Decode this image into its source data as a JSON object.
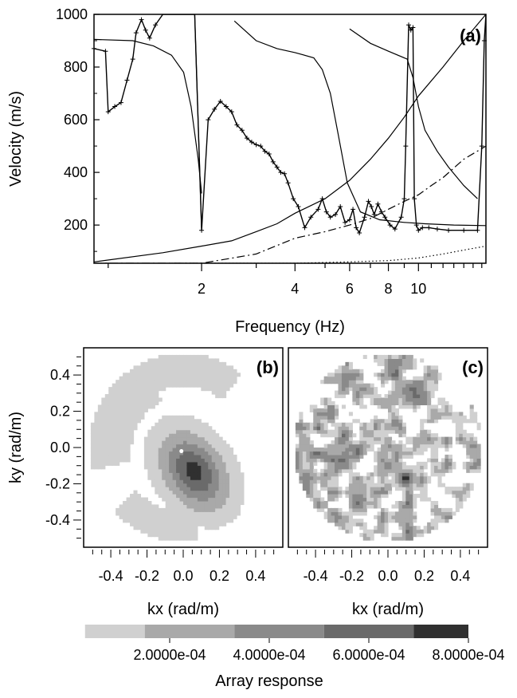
{
  "chart_data": [
    {
      "id": "a",
      "type": "line",
      "panel_label": "(a)",
      "xlabel": "Frequency (Hz)",
      "ylabel": "Velocity (m/s)",
      "xscale": "log",
      "xlim": [
        0.9,
        16.5
      ],
      "ylim": [
        55,
        1000
      ],
      "xticks": [
        2,
        4,
        6,
        8,
        10
      ],
      "yticks": [
        200,
        400,
        600,
        800,
        1000
      ],
      "grid": false,
      "series": [
        {
          "style": "solid",
          "points": [
            [
              0.9,
              905
            ],
            [
              1.2,
              900
            ],
            [
              1.4,
              880
            ],
            [
              1.6,
              845
            ],
            [
              1.75,
              780
            ],
            [
              1.85,
              650
            ],
            [
              1.95,
              450
            ],
            [
              2.0,
              320
            ]
          ]
        },
        {
          "style": "solid",
          "points": [
            [
              1.9,
              1000
            ],
            [
              2.0,
              180
            ]
          ]
        },
        {
          "style": "solid",
          "points": [
            [
              2.55,
              975
            ],
            [
              3.0,
              900
            ],
            [
              3.5,
              870
            ],
            [
              4.0,
              855
            ],
            [
              4.6,
              835
            ],
            [
              4.9,
              790
            ],
            [
              5.2,
              700
            ],
            [
              5.5,
              550
            ],
            [
              5.9,
              360
            ],
            [
              6.5,
              250
            ],
            [
              7.5,
              220
            ],
            [
              9.0,
              210
            ],
            [
              10.5,
              205
            ],
            [
              13,
              200
            ],
            [
              16.5,
              198
            ]
          ]
        },
        {
          "style": "solid",
          "points": [
            [
              6.0,
              945
            ],
            [
              7.0,
              890
            ],
            [
              8.0,
              860
            ],
            [
              9.2,
              830
            ],
            [
              9.6,
              760
            ],
            [
              10.0,
              650
            ],
            [
              10.5,
              560
            ],
            [
              11.5,
              480
            ],
            [
              12.5,
              420
            ],
            [
              14,
              350
            ],
            [
              15.5,
              300
            ]
          ]
        },
        {
          "style": "solid",
          "points": [
            [
              0.9,
              60
            ],
            [
              1.5,
              95
            ],
            [
              2.0,
              120
            ],
            [
              2.5,
              140
            ],
            [
              3.0,
              175
            ],
            [
              3.5,
              205
            ],
            [
              4.0,
              245
            ],
            [
              5.0,
              300
            ],
            [
              6.0,
              370
            ],
            [
              7.0,
              450
            ],
            [
              8.0,
              530
            ],
            [
              9.0,
              610
            ],
            [
              10.0,
              690
            ],
            [
              12.0,
              800
            ],
            [
              14.0,
              900
            ],
            [
              16.5,
              1000
            ]
          ]
        },
        {
          "style": "dashdot",
          "points": [
            [
              0.9,
              55
            ],
            [
              2.0,
              55
            ],
            [
              3.0,
              90
            ],
            [
              4.0,
              150
            ],
            [
              5.0,
              175
            ],
            [
              6.0,
              200
            ],
            [
              7.0,
              225
            ],
            [
              8.0,
              260
            ],
            [
              9.0,
              290
            ],
            [
              10.0,
              315
            ],
            [
              11.0,
              350
            ],
            [
              12.0,
              380
            ],
            [
              14.0,
              450
            ],
            [
              16.5,
              500
            ]
          ]
        },
        {
          "style": "dotted",
          "points": [
            [
              1.6,
              55
            ],
            [
              4.0,
              55
            ],
            [
              6.0,
              60
            ],
            [
              8.0,
              65
            ],
            [
              10.0,
              75
            ],
            [
              12.0,
              90
            ],
            [
              14.0,
              105
            ],
            [
              16.5,
              120
            ]
          ]
        },
        {
          "style": "marked",
          "points": [
            [
              0.9,
              870
            ],
            [
              0.98,
              860
            ],
            [
              1.0,
              630
            ],
            [
              1.05,
              650
            ],
            [
              1.1,
              665
            ],
            [
              1.15,
              750
            ],
            [
              1.2,
              830
            ],
            [
              1.23,
              930
            ],
            [
              1.28,
              980
            ],
            [
              1.32,
              940
            ],
            [
              1.36,
              910
            ],
            [
              1.42,
              960
            ],
            [
              1.5,
              1000
            ],
            [
              1.9,
              1000
            ],
            [
              2.0,
              180
            ],
            [
              2.1,
              600
            ],
            [
              2.2,
              640
            ],
            [
              2.3,
              670
            ],
            [
              2.4,
              650
            ],
            [
              2.5,
              630
            ],
            [
              2.6,
              580
            ],
            [
              2.7,
              560
            ],
            [
              2.8,
              530
            ],
            [
              2.9,
              515
            ],
            [
              3.0,
              505
            ],
            [
              3.1,
              500
            ],
            [
              3.2,
              480
            ],
            [
              3.3,
              470
            ],
            [
              3.4,
              440
            ],
            [
              3.5,
              420
            ],
            [
              3.6,
              400
            ],
            [
              3.7,
              395
            ],
            [
              3.8,
              360
            ],
            [
              3.95,
              300
            ],
            [
              4.1,
              270
            ],
            [
              4.3,
              190
            ],
            [
              4.5,
              230
            ],
            [
              4.75,
              260
            ],
            [
              4.9,
              300
            ],
            [
              5.05,
              250
            ],
            [
              5.2,
              230
            ],
            [
              5.4,
              240
            ],
            [
              5.6,
              270
            ],
            [
              5.8,
              210
            ],
            [
              6.0,
              220
            ],
            [
              6.15,
              260
            ],
            [
              6.3,
              190
            ],
            [
              6.45,
              170
            ],
            [
              6.7,
              230
            ],
            [
              6.9,
              290
            ],
            [
              7.05,
              270
            ],
            [
              7.2,
              240
            ],
            [
              7.4,
              280
            ],
            [
              7.6,
              250
            ],
            [
              7.8,
              230
            ],
            [
              8.1,
              200
            ],
            [
              8.4,
              185
            ],
            [
              8.8,
              230
            ],
            [
              9.0,
              300
            ],
            [
              9.1,
              500
            ],
            [
              9.3,
              960
            ],
            [
              9.45,
              940
            ],
            [
              9.6,
              950
            ],
            [
              9.7,
              300
            ],
            [
              9.85,
              200
            ],
            [
              10.0,
              180
            ],
            [
              10.3,
              190
            ],
            [
              10.8,
              190
            ],
            [
              11.5,
              185
            ],
            [
              12.5,
              180
            ],
            [
              14,
              180
            ],
            [
              15.5,
              180
            ],
            [
              16.0,
              500
            ],
            [
              16.3,
              900
            ],
            [
              16.5,
              1000
            ]
          ]
        }
      ]
    },
    {
      "id": "b",
      "type": "heatmap",
      "panel_label": "(b)",
      "xlabel": "kx (rad/m)",
      "ylabel": "ky (rad/m)",
      "xlim": [
        -0.55,
        0.55
      ],
      "ylim": [
        -0.55,
        0.55
      ],
      "xticks": [
        -0.4,
        -0.2,
        0.0,
        0.2,
        0.4
      ],
      "yticks": [
        -0.4,
        -0.2,
        0.0,
        0.2,
        0.4
      ],
      "tick_labels": [
        "-0.4",
        "-0.2",
        "0.0",
        "0.2",
        "0.4"
      ],
      "radius": 0.52
    },
    {
      "id": "c",
      "type": "heatmap",
      "panel_label": "(c)",
      "xlabel": "kx (rad/m)",
      "xlim": [
        -0.55,
        0.55
      ],
      "ylim": [
        -0.55,
        0.55
      ],
      "xticks": [
        -0.4,
        -0.2,
        0.0,
        0.2,
        0.4
      ],
      "tick_labels": [
        "-0.4",
        "-0.2",
        "0.0",
        "0.2",
        "0.4"
      ],
      "radius": 0.52
    }
  ],
  "colorbar": {
    "label": "Array response",
    "range": [
      0.0,
      0.0008
    ],
    "levels": [
      {
        "from": 3e-05,
        "to": 0.00015,
        "color": "#d0d0d0"
      },
      {
        "from": 0.00015,
        "to": 0.00033,
        "color": "#a9a9a9"
      },
      {
        "from": 0.00033,
        "to": 0.00051,
        "color": "#8a8a8a"
      },
      {
        "from": 0.00051,
        "to": 0.00069,
        "color": "#6a6a6a"
      },
      {
        "from": 0.00069,
        "to": 0.0008,
        "color": "#303030"
      }
    ],
    "ticks": [
      {
        "value": 0.0002,
        "label": "2.0000e-04"
      },
      {
        "value": 0.0004,
        "label": "4.0000e-04"
      },
      {
        "value": 0.0006,
        "label": "6.0000e-04"
      },
      {
        "value": 0.0008,
        "label": "8.0000e-04"
      }
    ]
  }
}
